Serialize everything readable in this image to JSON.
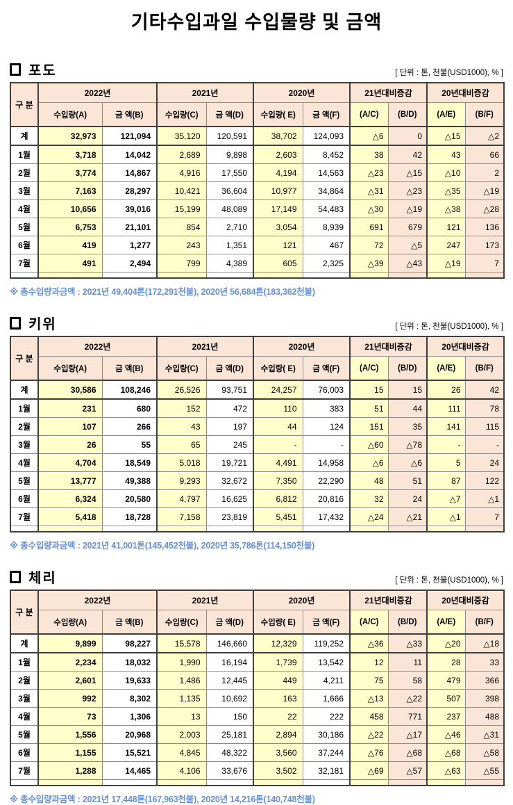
{
  "page_title": "기타수입과일 수입물량 및 금액",
  "unit_label": "[ 단위 : 톤, 천불(USD1000), % ]",
  "colors": {
    "header_peach": "#FBE5D6",
    "cell_yellow": "#FFFFCC",
    "footnote_blue": "#6590D5",
    "border_dark": "#3F3F3F",
    "border_light": "#8C8C8C"
  },
  "table_header": {
    "row_label": "구 분",
    "groups": [
      "2022년",
      "2021년",
      "2020년",
      "21년대비증감",
      "20년대비증감"
    ],
    "subs": [
      "수입량(A)",
      "금 액(B)",
      "수입량(C)",
      "금 액(D)",
      "수입량( E)",
      "금 액(F)",
      "(A/C)",
      "(B/D)",
      "(A/E)",
      "(B/F)"
    ]
  },
  "sections": [
    {
      "name": "포도",
      "footnote": "※ 총수입량과금액 : 2021년 49,404톤(172,291천불),  2020년 56,684톤(183,362천불)",
      "rows": [
        {
          "label": "계",
          "values": [
            "32,973",
            "121,094",
            "35,120",
            "120,591",
            "38,702",
            "124,093",
            "△6",
            "0",
            "△15",
            "△2"
          ]
        },
        {
          "label": "1월",
          "values": [
            "3,718",
            "14,042",
            "2,689",
            "9,898",
            "2,603",
            "8,452",
            "38",
            "42",
            "43",
            "66"
          ]
        },
        {
          "label": "2월",
          "values": [
            "3,774",
            "14,867",
            "4,916",
            "17,550",
            "4,194",
            "14,563",
            "△23",
            "△15",
            "△10",
            "2"
          ]
        },
        {
          "label": "3월",
          "values": [
            "7,163",
            "28,297",
            "10,421",
            "36,604",
            "10,977",
            "34,864",
            "△31",
            "△23",
            "△35",
            "△19"
          ]
        },
        {
          "label": "4월",
          "values": [
            "10,656",
            "39,016",
            "15,199",
            "48,089",
            "17,149",
            "54,483",
            "△30",
            "△19",
            "△38",
            "△28"
          ]
        },
        {
          "label": "5월",
          "values": [
            "6,753",
            "21,101",
            "854",
            "2,710",
            "3,054",
            "8,939",
            "691",
            "679",
            "121",
            "136"
          ]
        },
        {
          "label": "6월",
          "values": [
            "419",
            "1,277",
            "243",
            "1,351",
            "121",
            "467",
            "72",
            "△5",
            "247",
            "173"
          ]
        },
        {
          "label": "7월",
          "values": [
            "491",
            "2,494",
            "799",
            "4,389",
            "605",
            "2,325",
            "△39",
            "△43",
            "△19",
            "7"
          ]
        }
      ]
    },
    {
      "name": "키위",
      "footnote": "※ 총수입량과금액 : 2021년 41,001톤(145,452천불), 2020년 35,786톤(114,150천불)",
      "rows": [
        {
          "label": "계",
          "values": [
            "30,586",
            "108,246",
            "26,526",
            "93,751",
            "24,257",
            "76,003",
            "15",
            "15",
            "26",
            "42"
          ]
        },
        {
          "label": "1월",
          "values": [
            "231",
            "680",
            "152",
            "472",
            "110",
            "383",
            "51",
            "44",
            "111",
            "78"
          ]
        },
        {
          "label": "2월",
          "values": [
            "107",
            "266",
            "43",
            "197",
            "44",
            "124",
            "151",
            "35",
            "141",
            "115"
          ]
        },
        {
          "label": "3월",
          "values": [
            "26",
            "55",
            "65",
            "245",
            "-",
            "-",
            "△60",
            "△78",
            "-",
            "-"
          ]
        },
        {
          "label": "4월",
          "values": [
            "4,704",
            "18,549",
            "5,018",
            "19,721",
            "4,491",
            "14,958",
            "△6",
            "△6",
            "5",
            "24"
          ]
        },
        {
          "label": "5월",
          "values": [
            "13,777",
            "49,388",
            "9,293",
            "32,672",
            "7,350",
            "22,290",
            "48",
            "51",
            "87",
            "122"
          ]
        },
        {
          "label": "6월",
          "values": [
            "6,324",
            "20,580",
            "4,797",
            "16,625",
            "6,812",
            "20,816",
            "32",
            "24",
            "△7",
            "△1"
          ]
        },
        {
          "label": "7월",
          "values": [
            "5,418",
            "18,728",
            "7,158",
            "23,819",
            "5,451",
            "17,432",
            "△24",
            "△21",
            "△1",
            "7"
          ]
        }
      ]
    },
    {
      "name": "체리",
      "footnote": "※ 총수입량과금액 : 2021년 17,448톤(167,963천불), 2020년 14,216톤(140,748천불)",
      "rows": [
        {
          "label": "계",
          "values": [
            "9,899",
            "98,227",
            "15,578",
            "146,660",
            "12,329",
            "119,252",
            "△36",
            "△33",
            "△20",
            "△18"
          ]
        },
        {
          "label": "1월",
          "values": [
            "2,234",
            "18,032",
            "1,990",
            "16,194",
            "1,739",
            "13,542",
            "12",
            "11",
            "28",
            "33"
          ]
        },
        {
          "label": "2월",
          "values": [
            "2,601",
            "19,633",
            "1,486",
            "12,445",
            "449",
            "4,211",
            "75",
            "58",
            "479",
            "366"
          ]
        },
        {
          "label": "3월",
          "values": [
            "992",
            "8,302",
            "1,135",
            "10,692",
            "163",
            "1,666",
            "△13",
            "△22",
            "507",
            "398"
          ]
        },
        {
          "label": "4월",
          "values": [
            "73",
            "1,306",
            "13",
            "150",
            "22",
            "222",
            "458",
            "771",
            "237",
            "488"
          ]
        },
        {
          "label": "5월",
          "values": [
            "1,556",
            "20,968",
            "2,003",
            "25,181",
            "2,894",
            "30,186",
            "△22",
            "△17",
            "△46",
            "△31"
          ]
        },
        {
          "label": "6월",
          "values": [
            "1,155",
            "15,521",
            "4,845",
            "48,322",
            "3,560",
            "37,244",
            "△76",
            "△68",
            "△68",
            "△58"
          ]
        },
        {
          "label": "7월",
          "values": [
            "1,288",
            "14,465",
            "4,106",
            "33,676",
            "3,502",
            "32,181",
            "△69",
            "△57",
            "△63",
            "△55"
          ]
        }
      ]
    }
  ]
}
